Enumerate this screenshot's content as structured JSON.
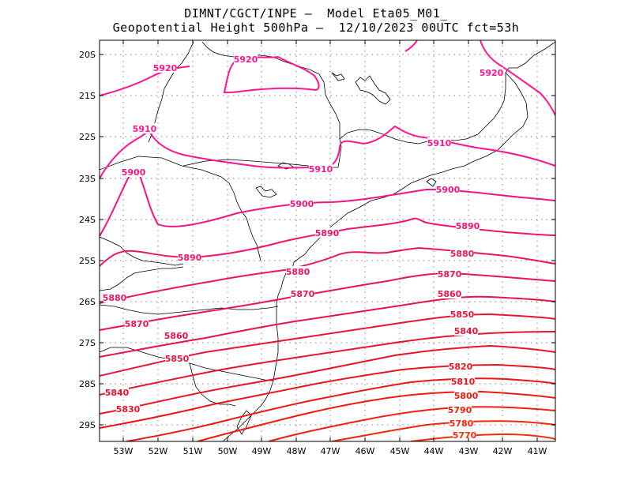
{
  "title": {
    "line1": "DIMNT/CGCT/INPE –  Model Eta05_M01_",
    "line2": "Geopotential Height 500hPa –  12/10/2023 00UTC fct=53h"
  },
  "axes": {
    "lat_labels": [
      "20S",
      "21S",
      "22S",
      "23S",
      "24S",
      "25S",
      "26S",
      "27S",
      "28S",
      "29S"
    ],
    "lon_labels": [
      "53W",
      "52W",
      "51W",
      "50W",
      "49W",
      "48W",
      "47W",
      "46W",
      "45W",
      "44W",
      "43W",
      "42W",
      "41W"
    ]
  },
  "colors": {
    "frame": "#000000",
    "coast": "#000000",
    "grid": "#999999"
  },
  "contours": [
    {
      "value": "5920",
      "color": "#ff1493"
    },
    {
      "value": "5910",
      "color": "#ff1493"
    },
    {
      "value": "5900",
      "color": "#f5147f"
    },
    {
      "value": "5890",
      "color": "#f0146e"
    },
    {
      "value": "5880",
      "color": "#eb1460"
    },
    {
      "value": "5870",
      "color": "#e81453"
    },
    {
      "value": "5860",
      "color": "#e61447"
    },
    {
      "value": "5850",
      "color": "#e6143a"
    },
    {
      "value": "5840",
      "color": "#e8142e"
    },
    {
      "value": "5830",
      "color": "#ea1424"
    },
    {
      "value": "5820",
      "color": "#ec141c"
    },
    {
      "value": "5810",
      "color": "#ee1414"
    },
    {
      "value": "5800",
      "color": "#f01a10"
    },
    {
      "value": "5790",
      "color": "#f2200d"
    },
    {
      "value": "5780",
      "color": "#f4260a"
    },
    {
      "value": "5770",
      "color": "#f62c08"
    }
  ],
  "contour_labels": [
    {
      "text": "5920",
      "level": 0
    },
    {
      "text": "5920",
      "level": 0
    },
    {
      "text": "5920",
      "level": 0
    },
    {
      "text": "5910",
      "level": 1
    },
    {
      "text": "5910",
      "level": 1
    },
    {
      "text": "5910",
      "level": 1
    },
    {
      "text": "5900",
      "level": 2
    },
    {
      "text": "5900",
      "level": 2
    },
    {
      "text": "5900",
      "level": 2
    },
    {
      "text": "5890",
      "level": 3
    },
    {
      "text": "5890",
      "level": 3
    },
    {
      "text": "5890",
      "level": 3
    },
    {
      "text": "5880",
      "level": 4
    },
    {
      "text": "5880",
      "level": 4
    },
    {
      "text": "5880",
      "level": 4
    },
    {
      "text": "5870",
      "level": 5
    },
    {
      "text": "5870",
      "level": 5
    },
    {
      "text": "5870",
      "level": 5
    },
    {
      "text": "5860",
      "level": 6
    },
    {
      "text": "5860",
      "level": 6
    },
    {
      "text": "5850",
      "level": 7
    },
    {
      "text": "5850",
      "level": 7
    },
    {
      "text": "5840",
      "level": 8
    },
    {
      "text": "5840",
      "level": 8
    },
    {
      "text": "5830",
      "level": 9
    },
    {
      "text": "5820",
      "level": 10
    },
    {
      "text": "5810",
      "level": 11
    },
    {
      "text": "5800",
      "level": 12
    },
    {
      "text": "5790",
      "level": 13
    },
    {
      "text": "5780",
      "level": 14
    },
    {
      "text": "5770",
      "level": 15
    }
  ]
}
